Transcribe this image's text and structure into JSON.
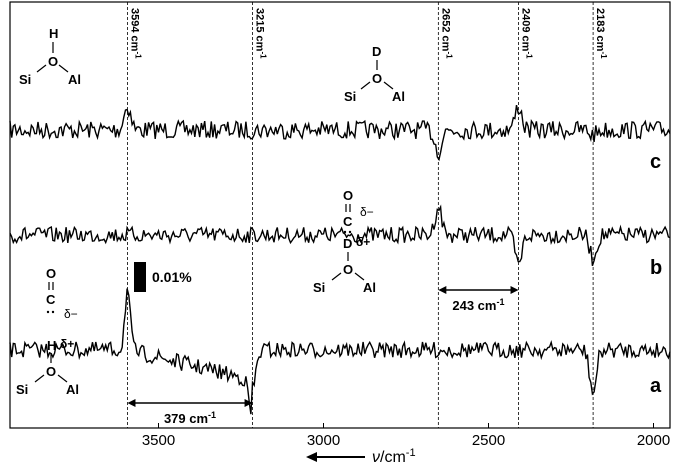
{
  "chart_data": {
    "type": "line",
    "xlabel": {
      "symbol": "ν",
      "unit": "/cm"
    },
    "x_ticks": [
      3500,
      3000,
      2500,
      2000
    ],
    "xlim": [
      3950,
      1950
    ],
    "x_reversed": true,
    "scale_bar_label": "0.01%",
    "series": [
      {
        "label": "c",
        "color": "#000000"
      },
      {
        "label": "b",
        "color": "#000000"
      },
      {
        "label": "a",
        "color": "#000000"
      }
    ],
    "reference_lines": [
      {
        "x": 3594,
        "label": "3594 cm",
        "sup": "-1"
      },
      {
        "x": 3215,
        "label": "3215 cm",
        "sup": "-1"
      },
      {
        "x": 2652,
        "label": "2652 cm",
        "sup": "-1"
      },
      {
        "x": 2409,
        "label": "2409 cm",
        "sup": "-1"
      },
      {
        "x": 2183,
        "label": "2183 cm",
        "sup": "-1"
      }
    ],
    "shift_annotations": [
      {
        "from": 2652,
        "to": 2409,
        "label": "243 cm",
        "sup": "-1"
      },
      {
        "from": 3594,
        "to": 3215,
        "label": "379 cm",
        "sup": "-1"
      }
    ],
    "features": [
      {
        "series": "c",
        "x": 3594,
        "dy": 1.0
      },
      {
        "series": "c",
        "x": 2652,
        "dy": -0.9
      },
      {
        "series": "c",
        "x": 2409,
        "dy": 1.0
      },
      {
        "series": "c",
        "x": 2183,
        "dy": -0.2
      },
      {
        "series": "b",
        "x": 2652,
        "dy": 1.2
      },
      {
        "series": "b",
        "x": 2409,
        "dy": -1.3
      },
      {
        "series": "b",
        "x": 2183,
        "dy": -1.0
      },
      {
        "series": "a",
        "x": 3594,
        "dy": 2.5
      },
      {
        "series": "a",
        "x": 3215,
        "dy": -1.6
      },
      {
        "series": "a",
        "x": 2183,
        "dy": -1.8
      }
    ]
  },
  "structures": {
    "silanol": {
      "h": "H",
      "o": "O",
      "si": "Si",
      "al": "Al"
    },
    "deuterated": {
      "d": "D",
      "o": "O",
      "si": "Si",
      "al": "Al"
    },
    "co_complex_b": {
      "o": "O",
      "c": "C",
      "delta_minus": "δ−",
      "d": "D",
      "delta_plus": "δ+",
      "oo": "O",
      "si": "Si",
      "al": "Al"
    },
    "co_complex_a": {
      "o": "O",
      "c": "C",
      "delta_minus": "δ−",
      "h": "H",
      "delta_plus": "δ+",
      "oo": "O",
      "si": "Si",
      "al": "Al"
    }
  }
}
